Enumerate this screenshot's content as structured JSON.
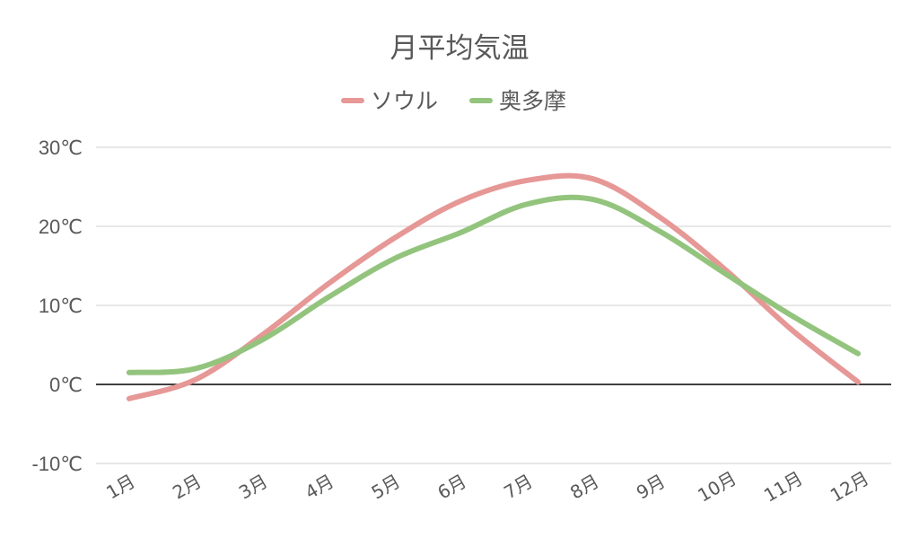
{
  "chart_data": {
    "type": "line",
    "title": "月平均気温",
    "categories": [
      "1月",
      "2月",
      "3月",
      "4月",
      "5月",
      "6月",
      "7月",
      "8月",
      "9月",
      "10月",
      "11月",
      "12月"
    ],
    "series": [
      {
        "name": "ソウル",
        "color": "#E69896",
        "values": [
          -1.8,
          0.6,
          6.2,
          12.7,
          18.5,
          23.2,
          25.8,
          26.0,
          21.2,
          14.5,
          6.9,
          0.3
        ]
      },
      {
        "name": "奥多摩",
        "color": "#93C47D",
        "values": [
          1.5,
          2.0,
          5.6,
          11.0,
          15.9,
          19.2,
          22.8,
          23.4,
          19.4,
          14.0,
          8.7,
          3.9
        ]
      }
    ],
    "ylim": [
      -10,
      30
    ],
    "yticks": [
      "-10℃",
      "0℃",
      "10℃",
      "20℃",
      "30℃"
    ],
    "ytick_values": [
      -10,
      0,
      10,
      20,
      30
    ],
    "grid": true,
    "legend_position": "top",
    "colors": {
      "grid": "#D9D9D9",
      "zero_line": "#000000",
      "text": "#595959"
    }
  }
}
